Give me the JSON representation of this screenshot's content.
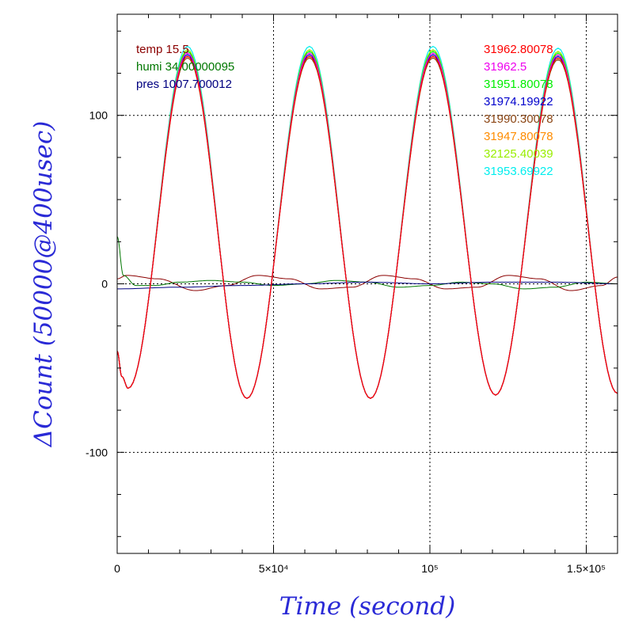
{
  "chart_data": {
    "type": "line",
    "title": "",
    "xlabel": "Time (second)",
    "ylabel": "ΔCount (50000@400usec)",
    "xlim": [
      0,
      160000
    ],
    "ylim": [
      -160,
      160
    ],
    "grid": true,
    "x_ticks": [
      {
        "value": 0,
        "label": "0"
      },
      {
        "value": 50000,
        "label": "5×10⁴"
      },
      {
        "value": 100000,
        "label": "10⁵"
      },
      {
        "value": 150000,
        "label": "1.5×10⁵"
      }
    ],
    "y_ticks": [
      {
        "value": 100,
        "label": "100"
      },
      {
        "value": 0,
        "label": "0"
      },
      {
        "value": -100,
        "label": "-100"
      }
    ],
    "legend_left": [
      {
        "name": "temp 15.5",
        "color": "#8b0000"
      },
      {
        "name": "humi 34.00000095",
        "color": "#007700"
      },
      {
        "name": "pres 1007.700012",
        "color": "#000080"
      }
    ],
    "legend_right": [
      {
        "name": "31962.80078",
        "color": "#ff0000"
      },
      {
        "name": "31962.5",
        "color": "#ee00ee"
      },
      {
        "name": "31951.80078",
        "color": "#00ee00"
      },
      {
        "name": "31974.19922",
        "color": "#0000cc"
      },
      {
        "name": "31990.30078",
        "color": "#8b4513"
      },
      {
        "name": "31947.80078",
        "color": "#ff8c00"
      },
      {
        "name": "32125.40039",
        "color": "#99ee00"
      },
      {
        "name": "31953.69922",
        "color": "#00eeee"
      }
    ],
    "main_series_shape": {
      "x": [
        0,
        1500,
        3500,
        22500,
        41500,
        61500,
        81000,
        101000,
        121000,
        141000,
        160000
      ],
      "y": [
        -40,
        -55,
        -62,
        137,
        -68,
        137,
        -68,
        137,
        -66,
        136,
        -65
      ]
    },
    "series": [
      {
        "name": "31962.80078",
        "color": "#ff0000",
        "offset": -2
      },
      {
        "name": "31962.5",
        "color": "#ee00ee",
        "offset": 0
      },
      {
        "name": "31951.80078",
        "color": "#00ee00",
        "offset": 1
      },
      {
        "name": "31974.19922",
        "color": "#0000cc",
        "offset": -1
      },
      {
        "name": "31990.30078",
        "color": "#8b4513",
        "offset": -3
      },
      {
        "name": "31947.80078",
        "color": "#ff8c00",
        "offset": -2
      },
      {
        "name": "32125.40039",
        "color": "#99ee00",
        "offset": 2
      },
      {
        "name": "31953.69922",
        "color": "#00eeee",
        "offset": 4
      }
    ],
    "temp_series": {
      "name": "temp 15.5",
      "color": "#8b0000",
      "x": [
        0,
        3000,
        13000,
        25000,
        35000,
        45000,
        55000,
        65000,
        75000,
        85000,
        95000,
        105000,
        115000,
        125000,
        135000,
        145000,
        155000,
        160000
      ],
      "y": [
        3,
        5,
        3,
        -4,
        -1,
        5,
        3,
        -3,
        -2,
        5,
        3,
        -3,
        -2,
        5,
        3,
        -4,
        -1,
        4
      ]
    },
    "humi_series": {
      "name": "humi 34.00000095",
      "color": "#007700",
      "x": [
        0,
        2000,
        6000,
        12000,
        20000,
        30000,
        40000,
        50000,
        60000,
        70000,
        80000,
        90000,
        100000,
        110000,
        120000,
        130000,
        140000,
        150000,
        160000
      ],
      "y": [
        28,
        5,
        -1,
        -1,
        1,
        2,
        1,
        -1,
        0,
        2,
        1,
        -2,
        -1,
        1,
        0,
        -3,
        -2,
        1,
        0
      ]
    },
    "pres_series": {
      "name": "pres 1007.700012",
      "color": "#000080",
      "x": [
        0,
        20000,
        40000,
        60000,
        80000,
        100000,
        120000,
        140000,
        160000
      ],
      "y": [
        -3,
        -2,
        -1,
        0,
        1,
        0,
        1,
        1,
        0
      ]
    }
  }
}
